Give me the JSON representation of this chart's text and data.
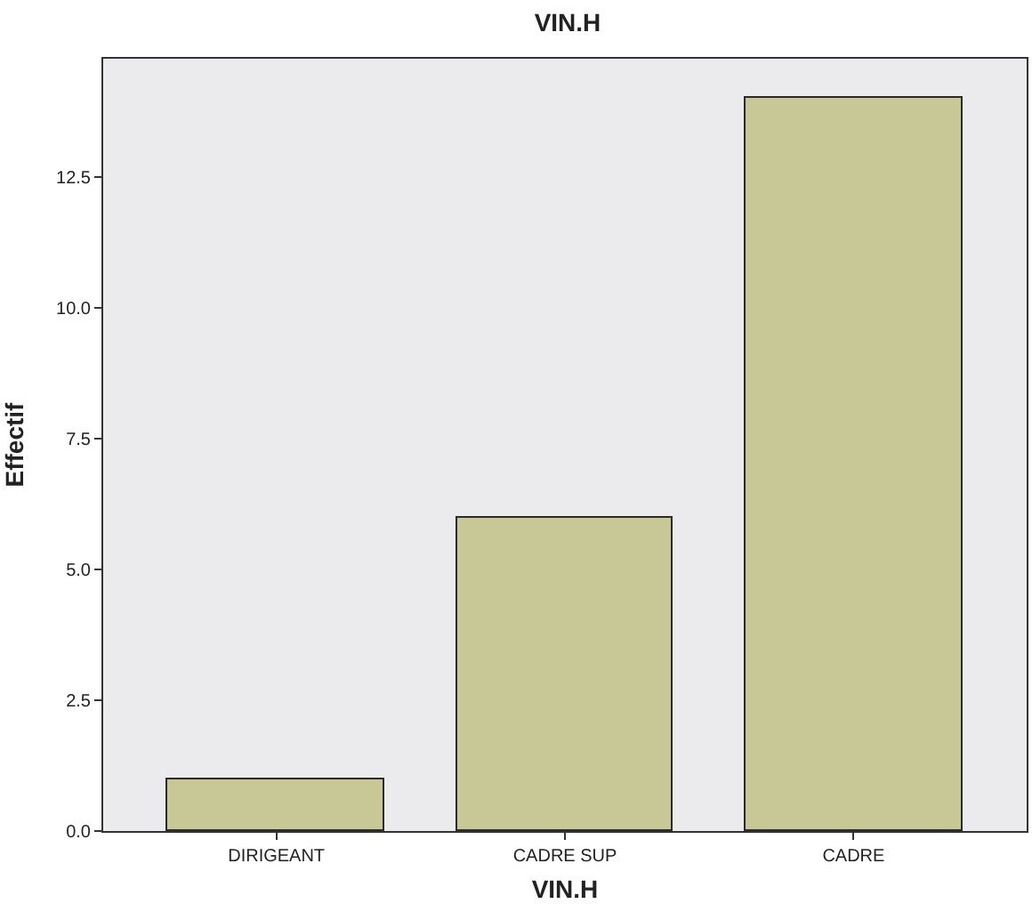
{
  "chart_data": {
    "type": "bar",
    "title": "VIN.H",
    "xlabel": "VIN.H",
    "ylabel": "Effectif",
    "categories": [
      "DIRIGEANT",
      "CADRE SUP",
      "CADRE"
    ],
    "values": [
      1,
      6,
      14
    ],
    "color": "#c8c896",
    "ylim": [
      0,
      14.76
    ],
    "yticks": [
      {
        "value": 0,
        "label": "0.0"
      },
      {
        "value": 2.5,
        "label": "2.5"
      },
      {
        "value": 5,
        "label": "5.0"
      },
      {
        "value": 7.5,
        "label": "7.5"
      },
      {
        "value": 10,
        "label": "10.0"
      },
      {
        "value": 12.5,
        "label": "12.5"
      }
    ],
    "grid": false
  }
}
